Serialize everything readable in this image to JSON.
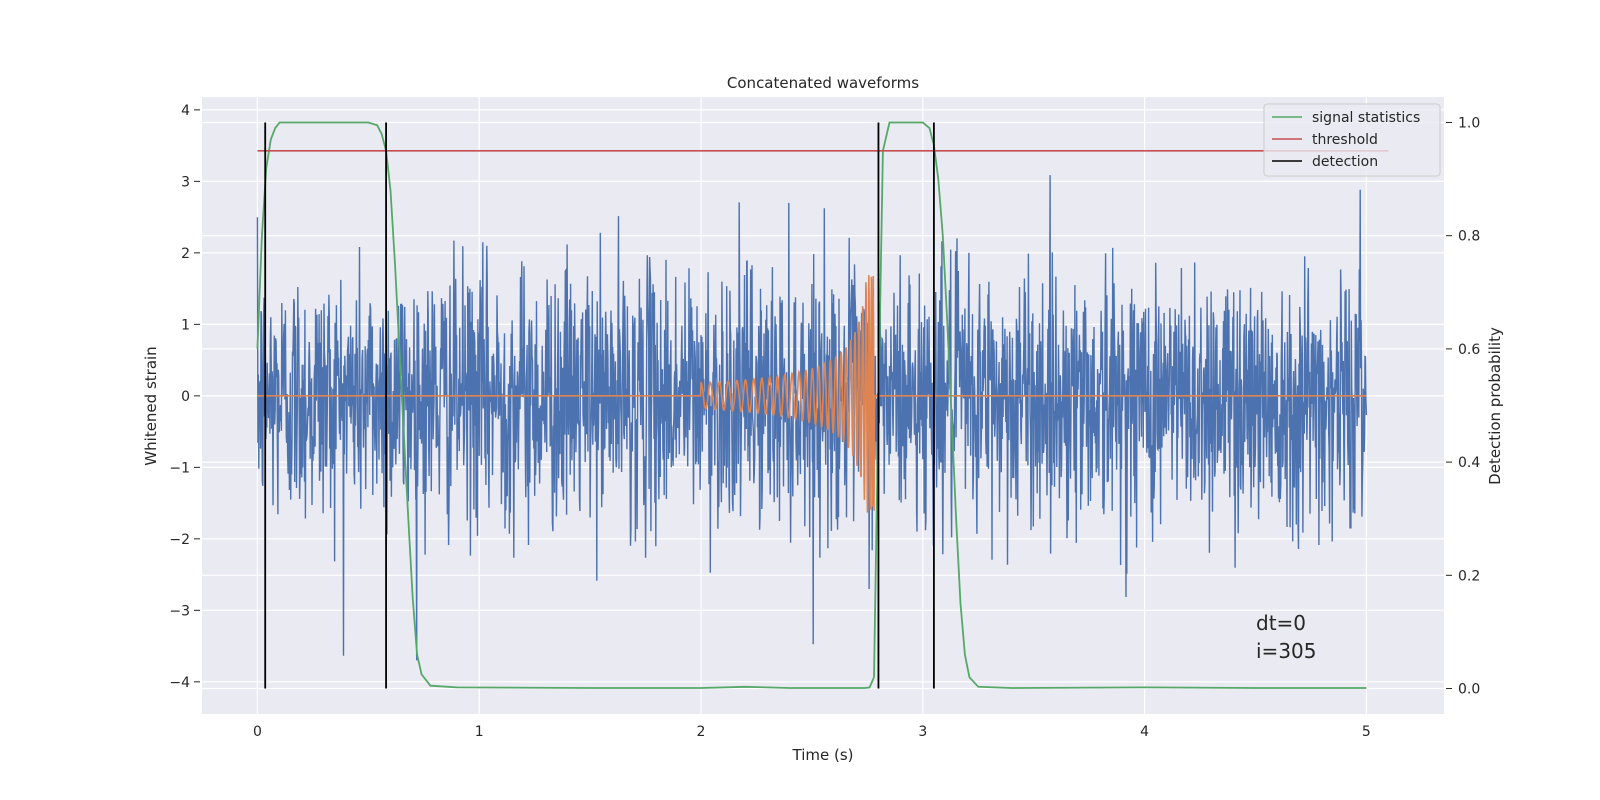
{
  "chart_data": {
    "type": "line",
    "title": "Concatenated waveforms",
    "xlabel": "Time (s)",
    "ylabel": "Whitened strain",
    "y2label": "Detection probability",
    "xlim": [
      -0.25,
      5.35
    ],
    "ylim": [
      -4.45,
      4.18
    ],
    "y2lim": [
      -0.045,
      1.045
    ],
    "xticks": [
      0,
      1,
      2,
      3,
      4,
      5
    ],
    "yticks": [
      -4,
      -3,
      -2,
      -1,
      0,
      1,
      2,
      3,
      4
    ],
    "y2ticks": [
      0.0,
      0.2,
      0.4,
      0.6,
      0.8,
      1.0
    ],
    "ytick_labels": [
      "−4",
      "−3",
      "−2",
      "−1",
      "0",
      "1",
      "2",
      "3",
      "4"
    ],
    "y2tick_labels": [
      "0.0",
      "0.2",
      "0.4",
      "0.6",
      "0.8",
      "1.0"
    ],
    "grid": true,
    "legend_position": "top-right",
    "colors": {
      "background": "#eaeaf2",
      "grid": "#ffffff",
      "whitened_strain": "#4c72b0",
      "injected_waveform": "#dd8452",
      "signal_statistics": "#55a868",
      "threshold": "#c44e52",
      "detection": "#000000"
    },
    "series": [
      {
        "key": "strain",
        "axis": "left",
        "x_range": [
          0,
          5
        ],
        "sample_count": 2500,
        "noise_std": 0.9,
        "max": 3.8,
        "min": -3.7
      },
      {
        "key": "waveform",
        "axis": "left",
        "x_range": [
          0,
          5
        ],
        "chirp_start": 2.0,
        "merger": 2.77,
        "amplitude_start": 0.18,
        "amplitude_peak": 1.7
      },
      {
        "name": "signal statistics",
        "axis": "right",
        "x": [
          0.0,
          0.02,
          0.04,
          0.06,
          0.08,
          0.1,
          0.15,
          0.2,
          0.3,
          0.4,
          0.5,
          0.54,
          0.56,
          0.58,
          0.6,
          0.62,
          0.64,
          0.66,
          0.68,
          0.7,
          0.72,
          0.74,
          0.78,
          0.9,
          1.5,
          2.0,
          2.2,
          2.4,
          2.6,
          2.74,
          2.76,
          2.78,
          2.8,
          2.82,
          2.85,
          2.9,
          3.0,
          3.03,
          3.05,
          3.07,
          3.09,
          3.11,
          3.13,
          3.15,
          3.17,
          3.19,
          3.21,
          3.25,
          3.4,
          4.0,
          4.5,
          5.0
        ],
        "y": [
          0.6,
          0.8,
          0.92,
          0.97,
          0.99,
          1.0,
          1.0,
          1.0,
          1.0,
          1.0,
          1.0,
          0.995,
          0.98,
          0.95,
          0.88,
          0.75,
          0.6,
          0.45,
          0.3,
          0.16,
          0.06,
          0.025,
          0.005,
          0.002,
          0.001,
          0.001,
          0.003,
          0.001,
          0.001,
          0.001,
          0.002,
          0.02,
          0.5,
          0.95,
          1.0,
          1.0,
          1.0,
          0.99,
          0.96,
          0.9,
          0.8,
          0.65,
          0.48,
          0.3,
          0.15,
          0.06,
          0.02,
          0.003,
          0.001,
          0.002,
          0.001,
          0.001
        ]
      },
      {
        "name": "threshold",
        "axis": "right",
        "x": [
          0,
          5.1
        ],
        "y": [
          0.95,
          0.95
        ]
      },
      {
        "name": "detection",
        "axis": "right",
        "style": "vertical-lines",
        "x": [
          0.035,
          0.58,
          2.8,
          3.05
        ],
        "y_range": [
          0.0,
          1.0
        ]
      }
    ],
    "annotations": [
      "dt=0",
      "i=305"
    ]
  }
}
